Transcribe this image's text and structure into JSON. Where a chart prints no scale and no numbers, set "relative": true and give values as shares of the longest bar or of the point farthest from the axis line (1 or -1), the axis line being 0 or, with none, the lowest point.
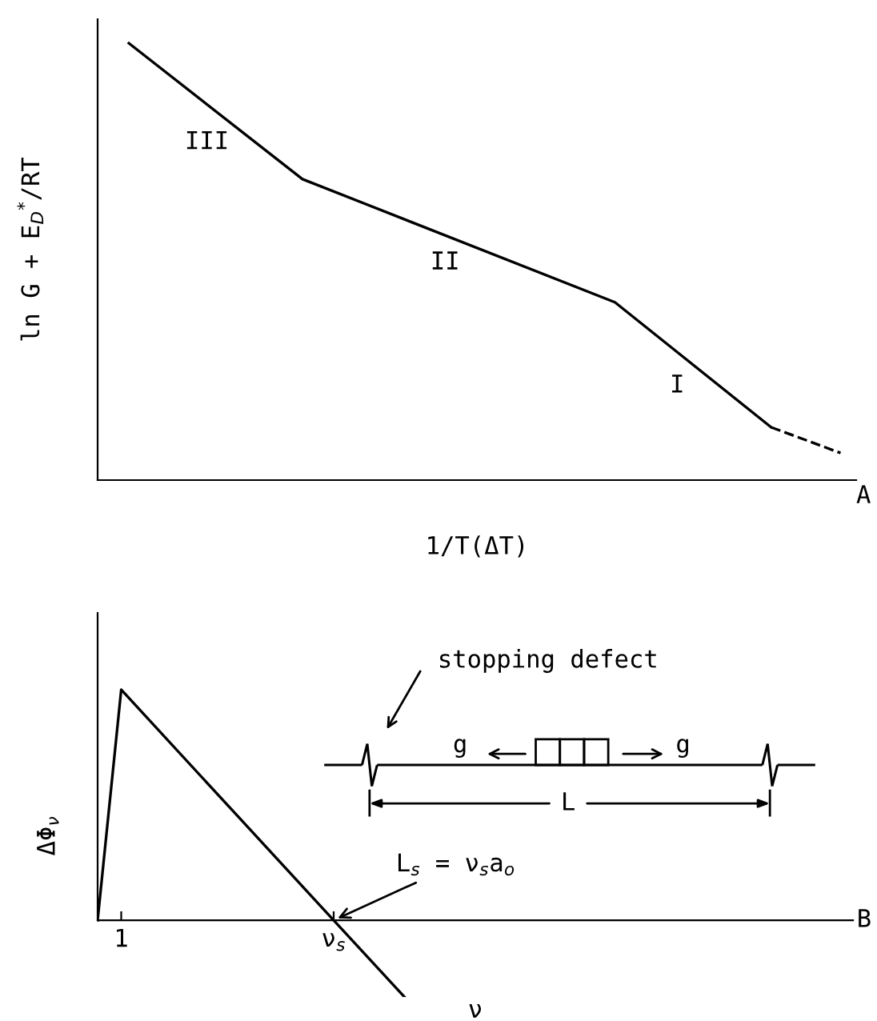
{
  "chart_data": [
    {
      "type": "line",
      "relative": true,
      "xlabel": "1/T(ΔT)",
      "ylabel": "ln G + E$_{D}$$^{*}$/RT",
      "legend": false,
      "grid": false,
      "marker": "none",
      "categories": [
        null,
        null,
        null,
        null,
        null,
        null,
        null,
        null,
        null,
        null,
        null,
        null,
        null,
        null,
        null,
        null,
        null,
        null,
        null,
        null,
        null,
        null,
        null,
        null,
        null,
        null,
        null,
        null,
        null,
        null,
        null,
        null,
        null,
        null,
        null,
        null,
        null,
        null,
        null,
        null,
        null,
        null
      ],
      "series": [
        {
          "values": [
            1,
            null,
            null,
            null,
            null,
            null,
            null,
            null,
            null,
            null,
            0.689,
            null,
            null,
            null,
            null,
            null,
            null,
            null,
            null,
            null,
            null,
            null,
            null,
            null,
            null,
            null,
            null,
            null,
            0.407,
            null,
            null,
            null,
            null,
            null,
            null,
            null,
            null,
            0.121,
            null,
            null,
            null,
            null
          ],
          "color": "#000000",
          "line_style": "solid"
        },
        {
          "values": [
            null,
            null,
            null,
            null,
            null,
            null,
            null,
            null,
            null,
            null,
            null,
            null,
            null,
            null,
            null,
            null,
            null,
            null,
            null,
            null,
            null,
            null,
            null,
            null,
            null,
            null,
            null,
            null,
            null,
            null,
            null,
            null,
            null,
            null,
            null,
            null,
            null,
            0.121,
            null,
            null,
            null,
            0.062
          ],
          "color": "#000000",
          "line_style": "dashed"
        }
      ],
      "annotations": [
        "III",
        "II",
        "I",
        "A"
      ]
    },
    {
      "type": "line",
      "relative": true,
      "xlabel": "ν",
      "ylabel": "ΔΦ$_{ν}$",
      "legend": false,
      "grid": false,
      "marker": "none",
      "categories": [
        null,
        "1",
        null,
        null,
        null,
        null,
        null,
        null,
        null,
        null,
        "ν$_{s}$",
        null,
        null,
        null,
        null,
        null,
        null,
        null,
        null,
        null,
        null,
        null,
        null,
        null,
        null,
        null,
        null,
        null,
        null,
        null,
        null,
        null,
        null
      ],
      "series": [
        {
          "values": [
            0,
            1,
            null,
            null,
            null,
            null,
            null,
            null,
            null,
            null,
            0,
            null,
            null,
            -0.333,
            null,
            null,
            null,
            null,
            null,
            null,
            null,
            null,
            null,
            null,
            null,
            null,
            null,
            null,
            null,
            null,
            null,
            null,
            null
          ],
          "color": "#000000",
          "line_style": "solid"
        }
      ],
      "annotations": [
        "stopping defect",
        "g",
        "g",
        "L",
        {
          "text": "L$_{s}$ = ν$_{s}$a$_{o}$",
          "x": "ν$_{s}$",
          "y": 0
        },
        "B"
      ]
    }
  ]
}
